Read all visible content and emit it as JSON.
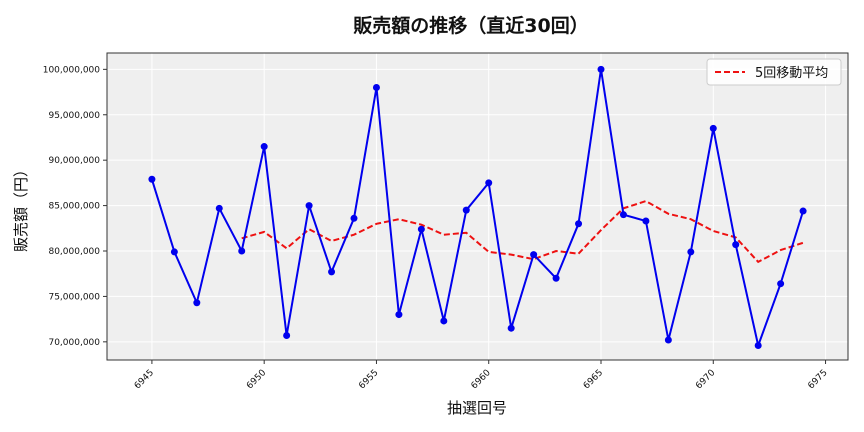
{
  "chart_data": {
    "type": "line",
    "title": "販売額の推移（直近30回）",
    "xlabel": "抽選回号",
    "ylabel": "販売額（円）",
    "x": [
      6945,
      6946,
      6947,
      6948,
      6949,
      6950,
      6951,
      6952,
      6953,
      6954,
      6955,
      6956,
      6957,
      6958,
      6959,
      6960,
      6961,
      6962,
      6963,
      6964,
      6965,
      6966,
      6967,
      6968,
      6969,
      6970,
      6971,
      6972,
      6973,
      6974
    ],
    "xlim": [
      6943,
      6976
    ],
    "ylim": [
      68000000,
      101800000
    ],
    "xticks": [
      6945,
      6950,
      6955,
      6960,
      6965,
      6970,
      6975
    ],
    "xtick_labels": [
      "6945",
      "6950",
      "6955",
      "6960",
      "6965",
      "6970",
      "6975"
    ],
    "yticks": [
      70000000,
      75000000,
      80000000,
      85000000,
      90000000,
      95000000,
      100000000
    ],
    "ytick_labels": [
      "70,000,000",
      "75,000,000",
      "80,000,000",
      "85,000,000",
      "90,000,000",
      "95,000,000",
      "100,000,000"
    ],
    "grid": true,
    "legend_position": "top-right",
    "series": [
      {
        "key": "sales",
        "style": "solid-markers",
        "color": "#0000ee",
        "values": [
          87900000,
          79900000,
          74300000,
          84700000,
          80000000,
          91500000,
          70700000,
          85000000,
          77700000,
          83600000,
          98000000,
          73000000,
          82400000,
          72300000,
          84500000,
          87500000,
          71500000,
          79600000,
          77000000,
          83000000,
          100000000,
          84000000,
          83300000,
          70200000,
          79900000,
          93500000,
          80700000,
          69600000,
          76400000,
          84400000
        ]
      },
      {
        "key": "ma5",
        "name": "5回移動平均",
        "style": "dashed",
        "color": "#ee1111",
        "x": [
          6949,
          6950,
          6951,
          6952,
          6953,
          6954,
          6955,
          6956,
          6957,
          6958,
          6959,
          6960,
          6961,
          6962,
          6963,
          6964,
          6965,
          6966,
          6967,
          6968,
          6969,
          6970,
          6971,
          6972,
          6973,
          6974
        ],
        "values": [
          81400000,
          82100000,
          80300000,
          82400000,
          81100000,
          81800000,
          83000000,
          83500000,
          82900000,
          81800000,
          82000000,
          79900000,
          79600000,
          79100000,
          80000000,
          79700000,
          82300000,
          84700000,
          85500000,
          84100000,
          83500000,
          82200000,
          81500000,
          78800000,
          80100000,
          80900000
        ]
      }
    ]
  }
}
